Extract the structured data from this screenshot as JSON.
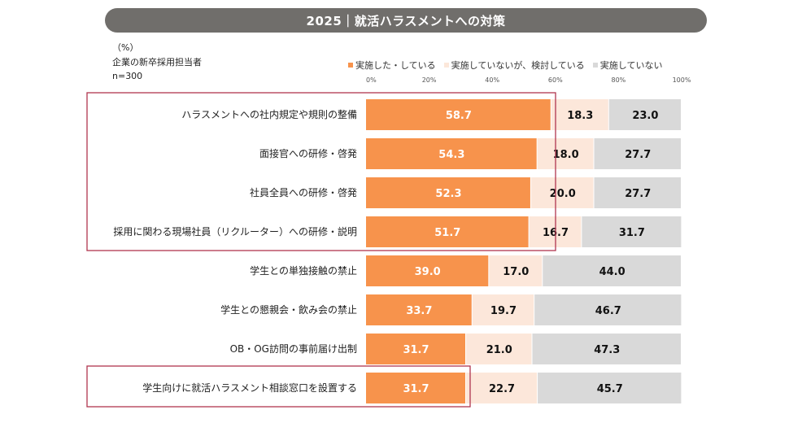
{
  "header": {
    "title": "2025｜就活ハラスメントへの対策"
  },
  "meta": {
    "unit": "（%）",
    "respondent": "企業の新卒採用担当者",
    "n": "n=300"
  },
  "colors": {
    "s1": "#f7934c",
    "s2": "#fce7da",
    "s3": "#d9d9d9",
    "highlight": "#b0354f"
  },
  "chart_data": {
    "type": "bar",
    "stacked": true,
    "orientation": "horizontal",
    "title": "2025｜就活ハラスメントへの対策",
    "xlim": [
      0,
      100
    ],
    "ticks": [
      "0%",
      "20%",
      "40%",
      "60%",
      "80%",
      "100%"
    ],
    "categories": [
      "ハラスメントへの社内規定や規則の整備",
      "面接官への研修・啓発",
      "社員全員への研修・啓発",
      "採用に関わる現場社員（リクルーター）への研修・説明",
      "学生との単独接触の禁止",
      "学生との懇親会・飲み会の禁止",
      "OB・OG訪問の事前届け出制",
      "学生向けに就活ハラスメント相談窓口を設置する"
    ],
    "series": [
      {
        "name": "実施した・している",
        "values": [
          58.7,
          54.3,
          52.3,
          51.7,
          39.0,
          33.7,
          31.7,
          31.7
        ]
      },
      {
        "name": "実施していないが、検討している",
        "values": [
          18.3,
          18.0,
          20.0,
          16.7,
          17.0,
          19.7,
          21.0,
          22.7
        ]
      },
      {
        "name": "実施していない",
        "values": [
          23.0,
          27.7,
          27.7,
          31.7,
          44.0,
          46.7,
          47.3,
          45.7
        ]
      }
    ],
    "highlighted_groups": [
      [
        0,
        3
      ],
      [
        7,
        7
      ]
    ]
  }
}
